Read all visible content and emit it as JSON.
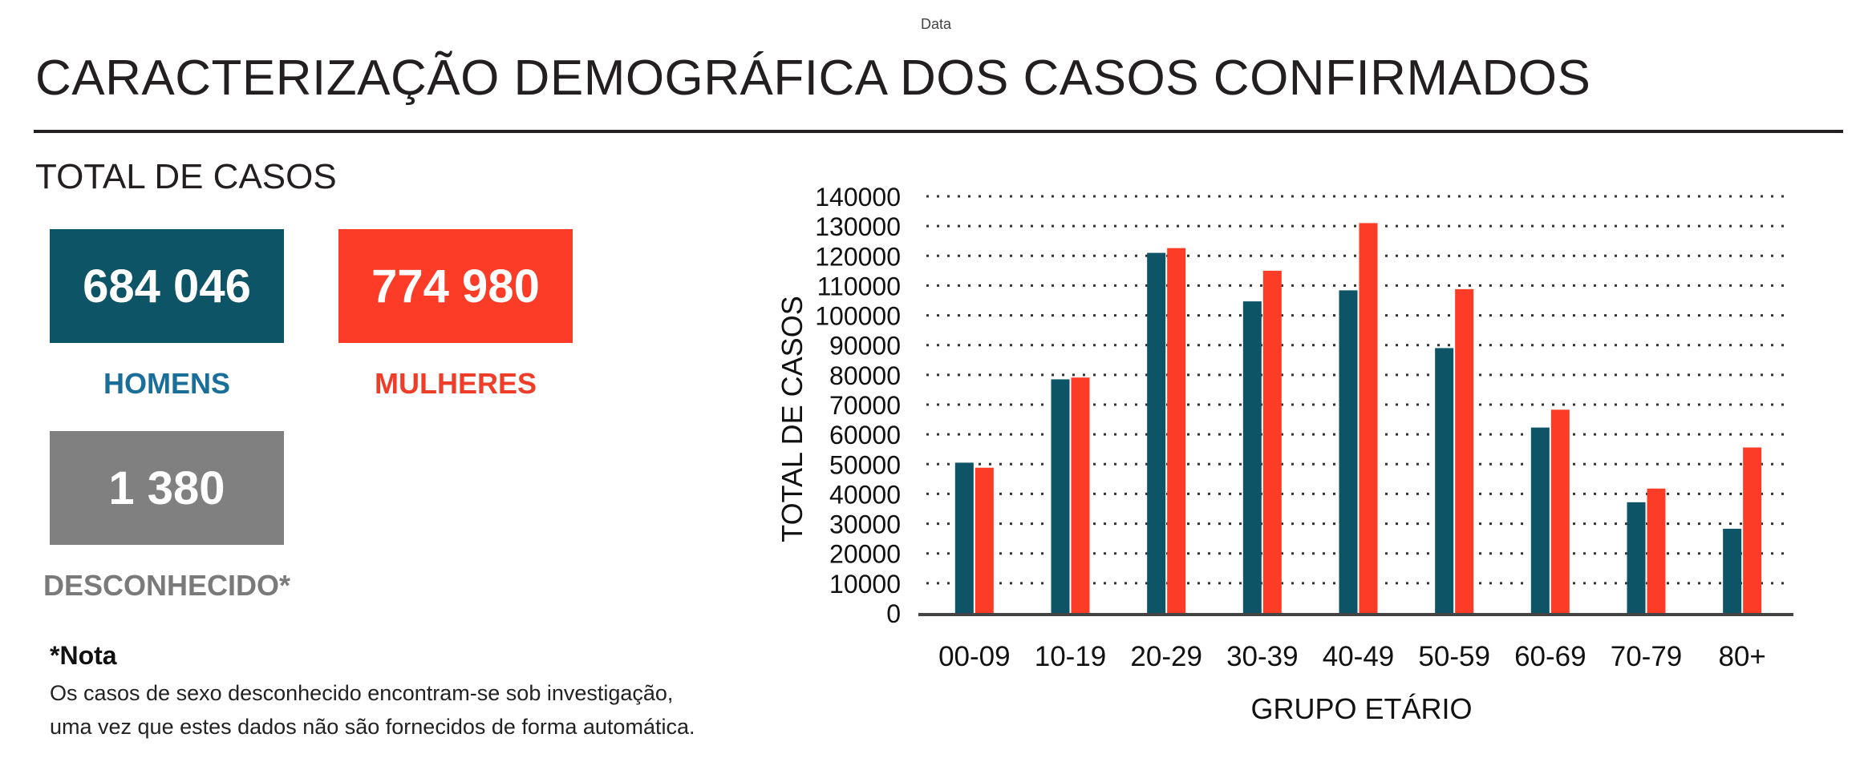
{
  "header": {
    "top_mark": "Data",
    "title": "CARACTERIZAÇÃO DEMOGRÁFICA DOS CASOS CONFIRMADOS",
    "subtitle": "TOTAL DE CASOS"
  },
  "cards": {
    "men": {
      "value": "684 046",
      "label": "HOMENS",
      "color": "#0d5466",
      "label_color": "#1a6e9a"
    },
    "women": {
      "value": "774 980",
      "label": "MULHERES",
      "color": "#fc3c27",
      "label_color": "#ee3e2a"
    },
    "unknown": {
      "value": "1 380",
      "label": "DESCONHECIDO*",
      "color": "#808080",
      "label_color": "#7a7a7a"
    }
  },
  "note": {
    "title": "*Nota",
    "line1": "Os casos de sexo desconhecido encontram-se sob investigação,",
    "line2": "uma vez que estes dados não são fornecidos de forma automática."
  },
  "chart_data": {
    "type": "bar",
    "title": "",
    "xlabel": "GRUPO ETÁRIO",
    "ylabel": "TOTAL DE CASOS",
    "categories": [
      "00-09",
      "10-19",
      "20-29",
      "30-39",
      "40-49",
      "50-59",
      "60-69",
      "70-79",
      "80+"
    ],
    "series": [
      {
        "color": "#0d5466",
        "values": [
          50500,
          78500,
          121000,
          104700,
          108400,
          89000,
          62300,
          37200,
          28300
        ]
      },
      {
        "color": "#fc3c27",
        "values": [
          48800,
          79100,
          122600,
          115000,
          131000,
          108800,
          68300,
          41800,
          55600
        ]
      }
    ],
    "ylim": [
      0,
      140000
    ],
    "yticks": [
      "0",
      "10000",
      "20000",
      "30000",
      "40000",
      "50000",
      "60000",
      "70000",
      "80000",
      "90000",
      "100000",
      "110000",
      "120000",
      "130000",
      "140000"
    ],
    "grid": true,
    "legend": "none"
  }
}
